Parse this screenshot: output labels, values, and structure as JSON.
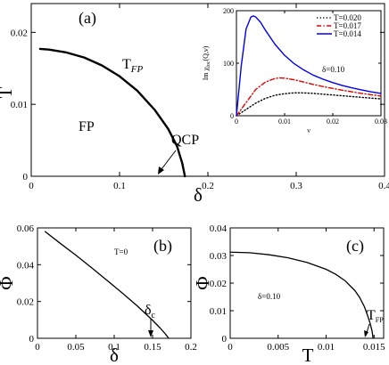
{
  "chart_data": [
    {
      "type": "line",
      "panel_label": "(a)",
      "xlabel": "δ",
      "ylabel": "T",
      "xlim": [
        0,
        0.4
      ],
      "ylim": [
        0,
        0.024
      ],
      "xticks": [
        "0",
        "0.1",
        "0.2",
        "0.3",
        "0.4"
      ],
      "yticks": [
        "0",
        "0.01",
        "0.02"
      ],
      "series": [
        {
          "x": [
            0.01,
            0.02,
            0.04,
            0.06,
            0.08,
            0.1,
            0.12,
            0.14,
            0.155,
            0.165,
            0.171,
            0.174
          ],
          "y": [
            0.0177,
            0.0176,
            0.0172,
            0.0165,
            0.0154,
            0.0139,
            0.0119,
            0.0092,
            0.0066,
            0.0042,
            0.0018,
            0.0
          ]
        }
      ],
      "annotations": {
        "tfp_main": "T",
        "tfp_sub": "FP",
        "fp": "FP",
        "qcp": "QCP"
      },
      "inset": {
        "type": "line",
        "xlabel": "ν",
        "ylabel_main": "Im χ",
        "ylabel_sub": "loc",
        "ylabel_tail": "(Q,ν)",
        "xlim": [
          0,
          0.03
        ],
        "ylim": [
          0,
          200
        ],
        "xticks": [
          "0",
          "0.01",
          "0.02",
          "0.03"
        ],
        "yticks": [
          "0",
          "100",
          "200"
        ],
        "annotation": "δ=0.10",
        "series": [
          {
            "name": "T=0.020",
            "color": "#000000",
            "style": "dotted",
            "x": [
              0,
              0.002,
              0.004,
              0.006,
              0.008,
              0.01,
              0.012,
              0.014,
              0.016,
              0.018,
              0.02,
              0.022,
              0.024,
              0.026,
              0.028,
              0.03
            ],
            "y": [
              0,
              12,
              24,
              33,
              39,
              42,
              43.5,
              43.5,
              42.5,
              41,
              39.5,
              38,
              36.5,
              35,
              33.5,
              32
            ]
          },
          {
            "name": "T=0.017",
            "color": "#e00000",
            "style": "dashdot",
            "x": [
              0,
              0.002,
              0.004,
              0.006,
              0.008,
              0.009,
              0.01,
              0.012,
              0.014,
              0.016,
              0.018,
              0.02,
              0.022,
              0.024,
              0.026,
              0.028,
              0.03
            ],
            "y": [
              0,
              25,
              50,
              64,
              71,
              72,
              71.5,
              68.5,
              64,
              59.5,
              55.5,
              52,
              48.5,
              45.5,
              42.5,
              40,
              37.5
            ]
          },
          {
            "name": "T=0.014",
            "color": "#0000ee",
            "style": "solid",
            "x": [
              0,
              0.001,
              0.002,
              0.003,
              0.0035,
              0.004,
              0.005,
              0.006,
              0.008,
              0.01,
              0.012,
              0.014,
              0.016,
              0.018,
              0.02,
              0.022,
              0.024,
              0.026,
              0.028,
              0.03
            ],
            "y": [
              0,
              95,
              165,
              188,
              190,
              188,
              178,
              163,
              136,
              115,
              99,
              87,
              77,
              69.5,
              63,
              57.5,
              53,
              49,
              45.5,
              42.5
            ]
          }
        ]
      }
    },
    {
      "type": "line",
      "panel_label": "(b)",
      "xlabel": "δ",
      "ylabel": "Φ",
      "xlim": [
        0,
        0.2
      ],
      "ylim": [
        0,
        0.06
      ],
      "xticks": [
        "0",
        "0.05",
        "0.1",
        "0.15",
        "0.2"
      ],
      "yticks": [
        "0",
        "0.02",
        "0.04",
        "0.06"
      ],
      "annotation": "T=0",
      "delta_c_main": "δ",
      "delta_c_sub": "c",
      "series": [
        {
          "x": [
            0.01,
            0.03,
            0.05,
            0.07,
            0.09,
            0.11,
            0.13,
            0.15,
            0.16,
            0.167,
            0.171
          ],
          "y": [
            0.058,
            0.0515,
            0.0452,
            0.0385,
            0.0317,
            0.0248,
            0.0176,
            0.0098,
            0.0055,
            0.0022,
            0.0
          ]
        }
      ]
    },
    {
      "type": "line",
      "panel_label": "(c)",
      "xlabel": "T",
      "ylabel": "Φ",
      "xlim": [
        0,
        0.016
      ],
      "ylim": [
        0,
        0.04
      ],
      "xticks": [
        "0",
        "0.005",
        "0.01",
        "0.015"
      ],
      "yticks": [
        "0",
        "0.01",
        "0.02",
        "0.03",
        "0.04"
      ],
      "annotation": "δ=0.10",
      "tfp_main": "T",
      "tfp_sub": "FP",
      "series": [
        {
          "x": [
            0,
            0.002,
            0.004,
            0.006,
            0.008,
            0.01,
            0.011,
            0.012,
            0.013,
            0.0135,
            0.014,
            0.0143,
            0.0146,
            0.0148,
            0.0149
          ],
          "y": [
            0.0312,
            0.031,
            0.0303,
            0.0292,
            0.0275,
            0.025,
            0.0232,
            0.0208,
            0.0173,
            0.0148,
            0.0114,
            0.0085,
            0.0053,
            0.0025,
            0.0
          ]
        }
      ]
    }
  ]
}
